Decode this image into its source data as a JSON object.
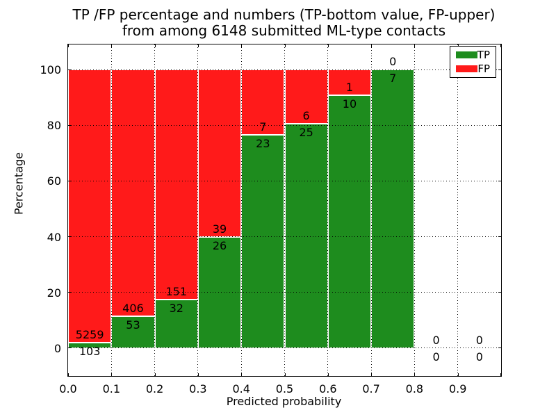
{
  "chart_data": {
    "type": "bar",
    "stacked": true,
    "title_line1": "TP /FP percentage and numbers (TP-bottom value, FP-upper)",
    "title_line2": "from among 6148 submitted ML-type contacts",
    "xlabel": "Predicted probability",
    "ylabel": "Percentage",
    "xlim": [
      0.0,
      1.0
    ],
    "ylim": [
      -10,
      109
    ],
    "x_tick_labels": [
      "0.0",
      "0.1",
      "0.2",
      "0.3",
      "0.4",
      "0.5",
      "0.6",
      "0.7",
      "0.8",
      "0.9"
    ],
    "y_tick_values": [
      0,
      20,
      40,
      60,
      80,
      100
    ],
    "y_tick_labels": [
      "0",
      "20",
      "40",
      "60",
      "80",
      "100"
    ],
    "grid": "dotted",
    "bin_width": 0.1,
    "total_contacts": 6148,
    "colors": {
      "tp": "#1e8c1e",
      "fp": "#ff1a1a",
      "bar_edge": "#ffffff",
      "grid": "#000000",
      "text": "#000000"
    },
    "legend": {
      "position": "upper right",
      "entries": [
        {
          "label": "TP",
          "color": "#1e8c1e"
        },
        {
          "label": "FP",
          "color": "#ff1a1a"
        }
      ]
    },
    "bins": [
      {
        "range": "0.0-0.1",
        "x_start": 0.0,
        "tp": 103,
        "fp": 5259,
        "tp_percent": 1.9
      },
      {
        "range": "0.1-0.2",
        "x_start": 0.1,
        "tp": 53,
        "fp": 406,
        "tp_percent": 11.5
      },
      {
        "range": "0.2-0.3",
        "x_start": 0.2,
        "tp": 32,
        "fp": 151,
        "tp_percent": 17.5
      },
      {
        "range": "0.3-0.4",
        "x_start": 0.3,
        "tp": 26,
        "fp": 39,
        "tp_percent": 40.0
      },
      {
        "range": "0.4-0.5",
        "x_start": 0.4,
        "tp": 23,
        "fp": 7,
        "tp_percent": 76.7
      },
      {
        "range": "0.5-0.6",
        "x_start": 0.5,
        "tp": 25,
        "fp": 6,
        "tp_percent": 80.6
      },
      {
        "range": "0.6-0.7",
        "x_start": 0.6,
        "tp": 10,
        "fp": 1,
        "tp_percent": 90.9
      },
      {
        "range": "0.7-0.8",
        "x_start": 0.7,
        "tp": 7,
        "fp": 0,
        "tp_percent": 100.0
      },
      {
        "range": "0.8-0.9",
        "x_start": 0.8,
        "tp": 0,
        "fp": 0,
        "tp_percent": 0
      },
      {
        "range": "0.9-1.0",
        "x_start": 0.9,
        "tp": 0,
        "fp": 0,
        "tp_percent": 0
      }
    ]
  }
}
